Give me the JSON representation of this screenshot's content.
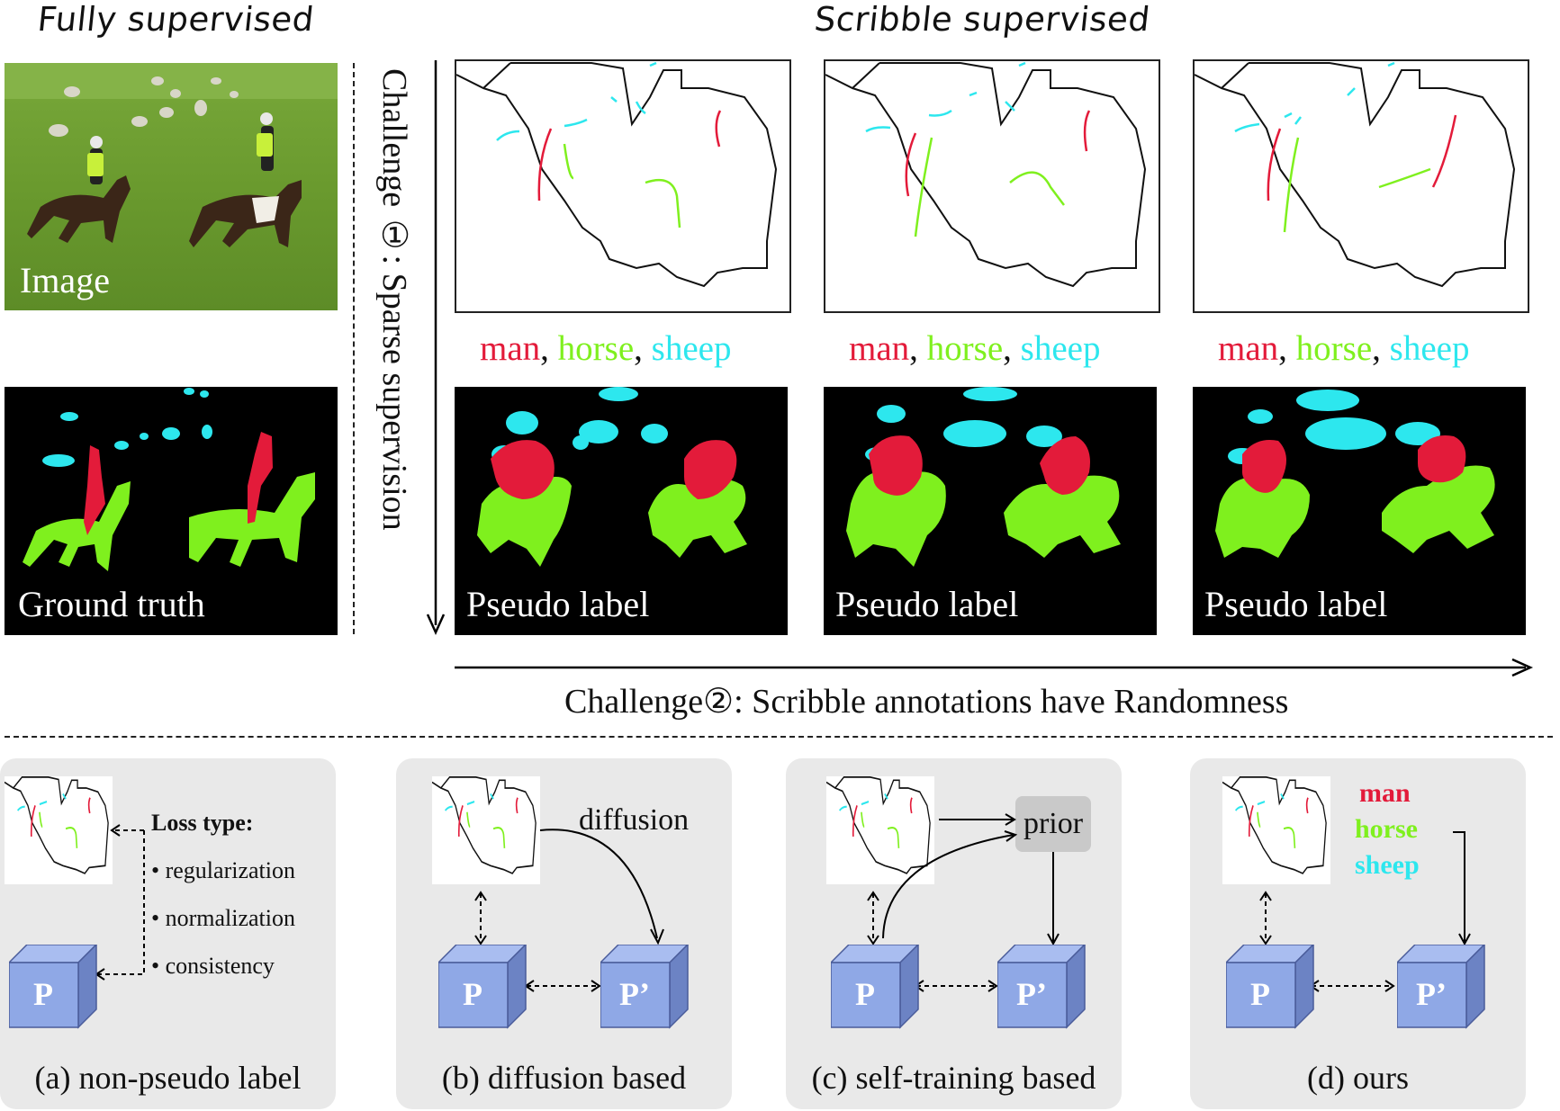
{
  "top": {
    "left_heading": "Fully supervised",
    "right_heading": "Scribble supervised",
    "image_tag": "Image",
    "gt_tag": "Ground truth",
    "challenge1": "Challenge ①: Sparse supervision",
    "challenge2": "Challenge②: Scribble annotations have Randomness",
    "pseudo_label": "Pseudo label",
    "legend": {
      "man": "man",
      "horse": "horse",
      "sheep": "sheep",
      "sep": ", "
    }
  },
  "colors": {
    "man": "#e31b3a",
    "horse": "#7ff01e",
    "sheep": "#2de7ee",
    "cube": "#8fa8e6",
    "panel": "#e9e9e9"
  },
  "panels": {
    "a": {
      "caption": "(a) non-pseudo label",
      "loss_title": "Loss type:",
      "bullets": [
        "regularization",
        "normalization",
        "consistency"
      ],
      "cube": "P"
    },
    "b": {
      "caption": "(b) diffusion based",
      "edge_label": "diffusion",
      "cube1": "P",
      "cube2": "P’"
    },
    "c": {
      "caption": "(c) self-training based",
      "prior": "prior",
      "cube1": "P",
      "cube2": "P’"
    },
    "d": {
      "caption": "(d) ours",
      "labels": [
        "man",
        "horse",
        "sheep"
      ],
      "cube1": "P",
      "cube2": "P’"
    }
  }
}
